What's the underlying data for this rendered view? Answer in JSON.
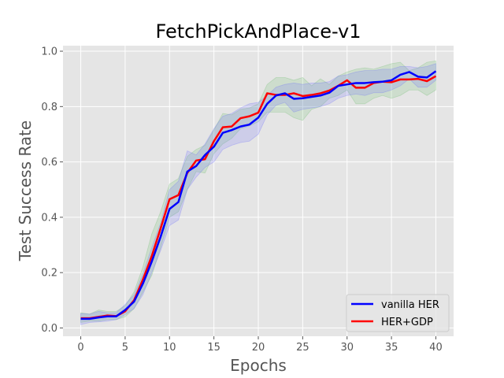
{
  "chart_data": {
    "type": "line",
    "title": "FetchPickAndPlace-v1",
    "xlabel": "Epochs",
    "ylabel": "Test Success Rate",
    "xlim": [
      -2,
      42
    ],
    "ylim": [
      -0.03,
      1.02
    ],
    "xticks": [
      0,
      5,
      10,
      15,
      20,
      25,
      30,
      35,
      40
    ],
    "yticks": [
      0.0,
      0.2,
      0.4,
      0.6,
      0.8,
      1.0
    ],
    "xtick_labels": [
      "0",
      "5",
      "10",
      "15",
      "20",
      "25",
      "30",
      "35",
      "40"
    ],
    "ytick_labels": [
      "0.0",
      "0.2",
      "0.4",
      "0.6",
      "0.8",
      "1.0"
    ],
    "grid": true,
    "legend_position": "lower-right",
    "x": [
      0,
      1,
      2,
      3,
      4,
      5,
      6,
      7,
      8,
      9,
      10,
      11,
      12,
      13,
      14,
      15,
      16,
      17,
      18,
      19,
      20,
      21,
      22,
      23,
      24,
      25,
      26,
      27,
      28,
      29,
      30,
      31,
      32,
      33,
      34,
      35,
      36,
      37,
      38,
      39,
      40
    ],
    "series": [
      {
        "name": "vanilla HER",
        "color": "#0000ff",
        "band_color": "#6666ff",
        "values": [
          0.033,
          0.033,
          0.038,
          0.042,
          0.042,
          0.065,
          0.095,
          0.16,
          0.24,
          0.33,
          0.43,
          0.455,
          0.565,
          0.585,
          0.625,
          0.655,
          0.705,
          0.715,
          0.728,
          0.735,
          0.76,
          0.81,
          0.84,
          0.848,
          0.828,
          0.83,
          0.835,
          0.84,
          0.85,
          0.875,
          0.88,
          0.885,
          0.885,
          0.888,
          0.89,
          0.895,
          0.915,
          0.925,
          0.908,
          0.905,
          0.928
        ],
        "upper": [
          0.052,
          0.05,
          0.06,
          0.055,
          0.055,
          0.085,
          0.12,
          0.195,
          0.29,
          0.38,
          0.5,
          0.53,
          0.64,
          0.625,
          0.665,
          0.72,
          0.765,
          0.775,
          0.795,
          0.81,
          0.815,
          0.84,
          0.87,
          0.88,
          0.885,
          0.88,
          0.885,
          0.885,
          0.89,
          0.91,
          0.915,
          0.925,
          0.93,
          0.93,
          0.935,
          0.935,
          0.945,
          0.945,
          0.94,
          0.945,
          0.955
        ],
        "lower": [
          0.012,
          0.02,
          0.022,
          0.025,
          0.03,
          0.048,
          0.07,
          0.12,
          0.2,
          0.28,
          0.37,
          0.39,
          0.5,
          0.545,
          0.58,
          0.6,
          0.645,
          0.66,
          0.67,
          0.675,
          0.7,
          0.77,
          0.805,
          0.815,
          0.78,
          0.79,
          0.795,
          0.8,
          0.81,
          0.83,
          0.84,
          0.845,
          0.84,
          0.85,
          0.85,
          0.86,
          0.875,
          0.9,
          0.87,
          0.87,
          0.895
        ]
      },
      {
        "name": "HER+GDP",
        "color": "#ff0000",
        "band_color": "#66bb66",
        "values": [
          0.035,
          0.035,
          0.04,
          0.045,
          0.043,
          0.06,
          0.1,
          0.175,
          0.26,
          0.36,
          0.465,
          0.48,
          0.56,
          0.605,
          0.61,
          0.675,
          0.725,
          0.728,
          0.758,
          0.765,
          0.778,
          0.848,
          0.842,
          0.842,
          0.848,
          0.838,
          0.842,
          0.848,
          0.858,
          0.875,
          0.895,
          0.868,
          0.868,
          0.885,
          0.89,
          0.888,
          0.898,
          0.898,
          0.9,
          0.892,
          0.91
        ],
        "upper": [
          0.055,
          0.05,
          0.065,
          0.06,
          0.06,
          0.08,
          0.13,
          0.22,
          0.34,
          0.42,
          0.52,
          0.54,
          0.62,
          0.645,
          0.66,
          0.715,
          0.775,
          0.77,
          0.79,
          0.795,
          0.81,
          0.88,
          0.905,
          0.905,
          0.895,
          0.905,
          0.875,
          0.9,
          0.88,
          0.91,
          0.925,
          0.935,
          0.94,
          0.935,
          0.945,
          0.955,
          0.96,
          0.93,
          0.94,
          0.96,
          0.965
        ],
        "lower": [
          0.02,
          0.025,
          0.025,
          0.03,
          0.03,
          0.04,
          0.07,
          0.13,
          0.19,
          0.29,
          0.4,
          0.42,
          0.5,
          0.565,
          0.56,
          0.63,
          0.665,
          0.685,
          0.72,
          0.73,
          0.745,
          0.78,
          0.78,
          0.78,
          0.76,
          0.75,
          0.79,
          0.8,
          0.83,
          0.84,
          0.86,
          0.81,
          0.81,
          0.83,
          0.84,
          0.83,
          0.84,
          0.86,
          0.86,
          0.84,
          0.86
        ]
      }
    ]
  }
}
